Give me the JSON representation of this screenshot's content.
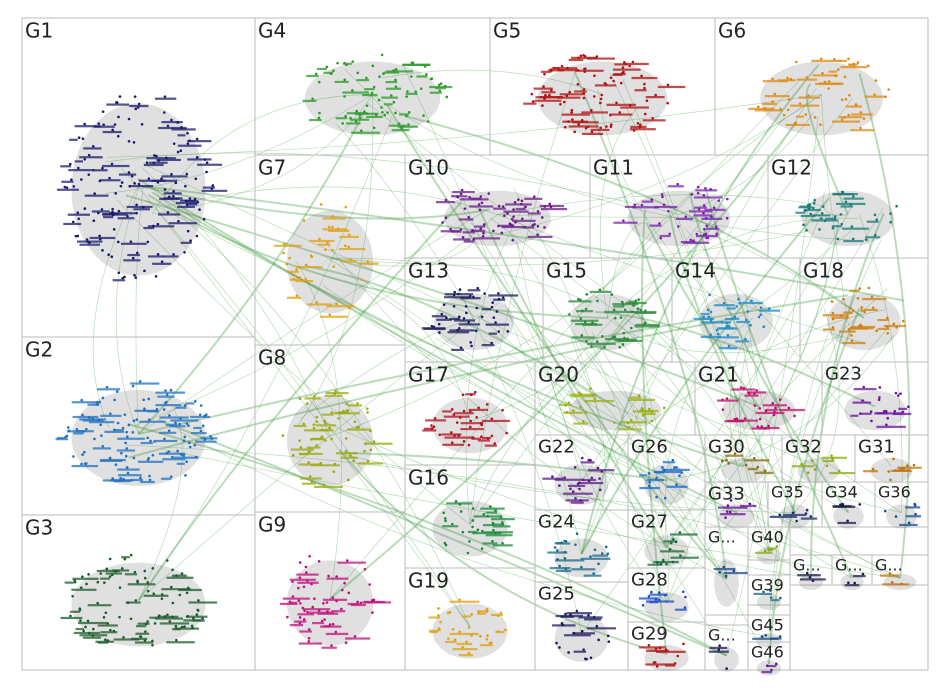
{
  "groups": [
    {
      "label": "G1"
    },
    {
      "label": "G4"
    },
    {
      "label": "G5"
    },
    {
      "label": "G6"
    },
    {
      "label": "G7"
    },
    {
      "label": "G10"
    },
    {
      "label": "G11"
    },
    {
      "label": "G12"
    },
    {
      "label": "G13"
    },
    {
      "label": "G15"
    },
    {
      "label": "G14"
    },
    {
      "label": "G18"
    },
    {
      "label": "G2"
    },
    {
      "label": "G8"
    },
    {
      "label": "G17"
    },
    {
      "label": "G20"
    },
    {
      "label": "G21"
    },
    {
      "label": "G23"
    },
    {
      "label": "G22"
    },
    {
      "label": "G26"
    },
    {
      "label": "G30"
    },
    {
      "label": "G32"
    },
    {
      "label": "G31"
    },
    {
      "label": "G33"
    },
    {
      "label": "G35"
    },
    {
      "label": "G34"
    },
    {
      "label": "G36"
    },
    {
      "label": "G16"
    },
    {
      "label": "G3"
    },
    {
      "label": "G9"
    },
    {
      "label": "G24"
    },
    {
      "label": "G27"
    },
    {
      "label": "G..."
    },
    {
      "label": "G40"
    },
    {
      "label": "G..."
    },
    {
      "label": "G..."
    },
    {
      "label": "G..."
    },
    {
      "label": "G39"
    },
    {
      "label": "G45"
    },
    {
      "label": "G46"
    },
    {
      "label": "G..."
    },
    {
      "label": "G19"
    },
    {
      "label": "G25"
    },
    {
      "label": "G28"
    },
    {
      "label": "G29"
    }
  ]
}
